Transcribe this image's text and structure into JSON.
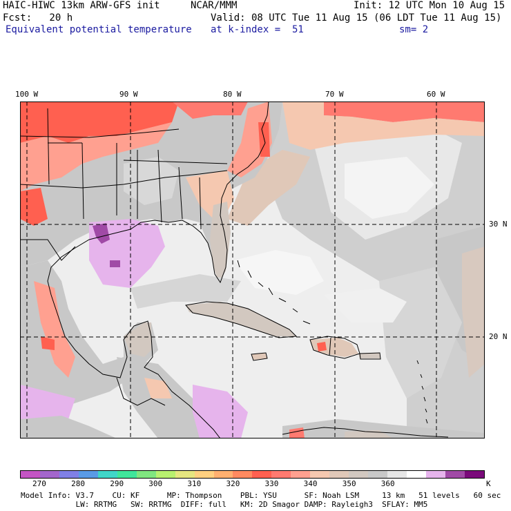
{
  "header": {
    "line1_left": "HAIC-HIWC 13km ARW-GFS init",
    "line1_mid": "NCAR/MMM",
    "line1_right": "Init: 12 UTC Mon 10 Aug 15",
    "line2_left": "Fcst:   20 h",
    "line2_right": "Valid: 08 UTC Tue 11 Aug 15 (06 LDT Tue 11 Aug 15)",
    "line3_left": "Equivalent potential temperature",
    "line3_mid": "at k-index =  51",
    "line3_right": "sm= 2"
  },
  "map": {
    "lon_labels": [
      "100 W",
      "90 W",
      "80 W",
      "70 W",
      "60 W"
    ],
    "lat_labels": [
      "30 N",
      "20 N"
    ]
  },
  "colorbar": {
    "unit": "K",
    "tick_labels": [
      "270",
      "280",
      "290",
      "300",
      "310",
      "320",
      "330",
      "340",
      "350",
      "360"
    ],
    "colors": [
      "#c455c4",
      "#a366cc",
      "#8080e6",
      "#5a9be6",
      "#40d6c8",
      "#40e69b",
      "#80e680",
      "#b8f070",
      "#e6e680",
      "#ffd080",
      "#ffb070",
      "#ff8a60",
      "#ff6050",
      "#ff7a70",
      "#ffa090",
      "#f5c8b0",
      "#e0c8b8",
      "#d2c8c0",
      "#c8c8c8",
      "#e6e6e6",
      "#ffffff",
      "#e6b4ec",
      "#a04aa6",
      "#7a0a7a"
    ]
  },
  "footer": {
    "line1": "Model Info: V3.7    CU: KF      MP: Thompson    PBL: YSU      SF: Noah LSM     13 km   51 levels   60 sec",
    "line2": "            LW: RRTMG   SW: RRTMG  DIFF: full   KM: 2D Smagor DAMP: Rayleigh3  SFLAY: MM5"
  }
}
